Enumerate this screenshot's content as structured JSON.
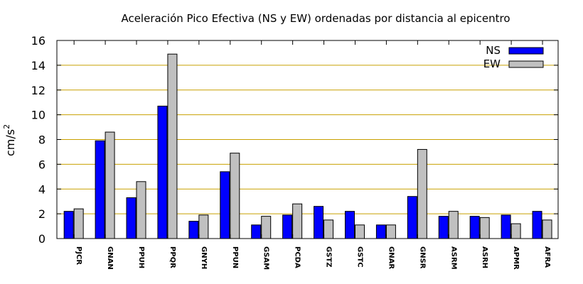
{
  "chart_data": {
    "type": "bar",
    "title": "Aceleración Pico Efectiva (NS y EW) ordenadas por distancia al epicentro",
    "ylabel": "cm/s",
    "ylabel_sup": "2",
    "xlabel": "",
    "ylim": [
      0,
      16
    ],
    "yticks": [
      0,
      2,
      4,
      6,
      8,
      10,
      12,
      14,
      16
    ],
    "grid": "horizontal",
    "legend_position": "top-right",
    "categories": [
      "PJCR",
      "GNAN",
      "PPUH",
      "PPQR",
      "GNYH",
      "PPUN",
      "GSAM",
      "PCDA",
      "GSTZ",
      "GSTC",
      "GNAR",
      "GNSR",
      "ASRM",
      "ASRH",
      "APMR",
      "AFRA"
    ],
    "series": [
      {
        "name": "NS",
        "color": "#0000ff",
        "values": [
          2.2,
          7.9,
          3.3,
          10.7,
          1.4,
          5.4,
          1.1,
          1.9,
          2.6,
          2.2,
          1.1,
          3.4,
          1.8,
          1.8,
          1.9,
          2.2
        ]
      },
      {
        "name": "EW",
        "color": "#c0c0c0",
        "values": [
          2.4,
          8.6,
          4.6,
          14.9,
          1.9,
          6.9,
          1.8,
          2.8,
          1.5,
          1.1,
          1.1,
          7.2,
          2.2,
          1.7,
          1.2,
          1.5
        ]
      }
    ],
    "grid_color": "#c8a000"
  }
}
